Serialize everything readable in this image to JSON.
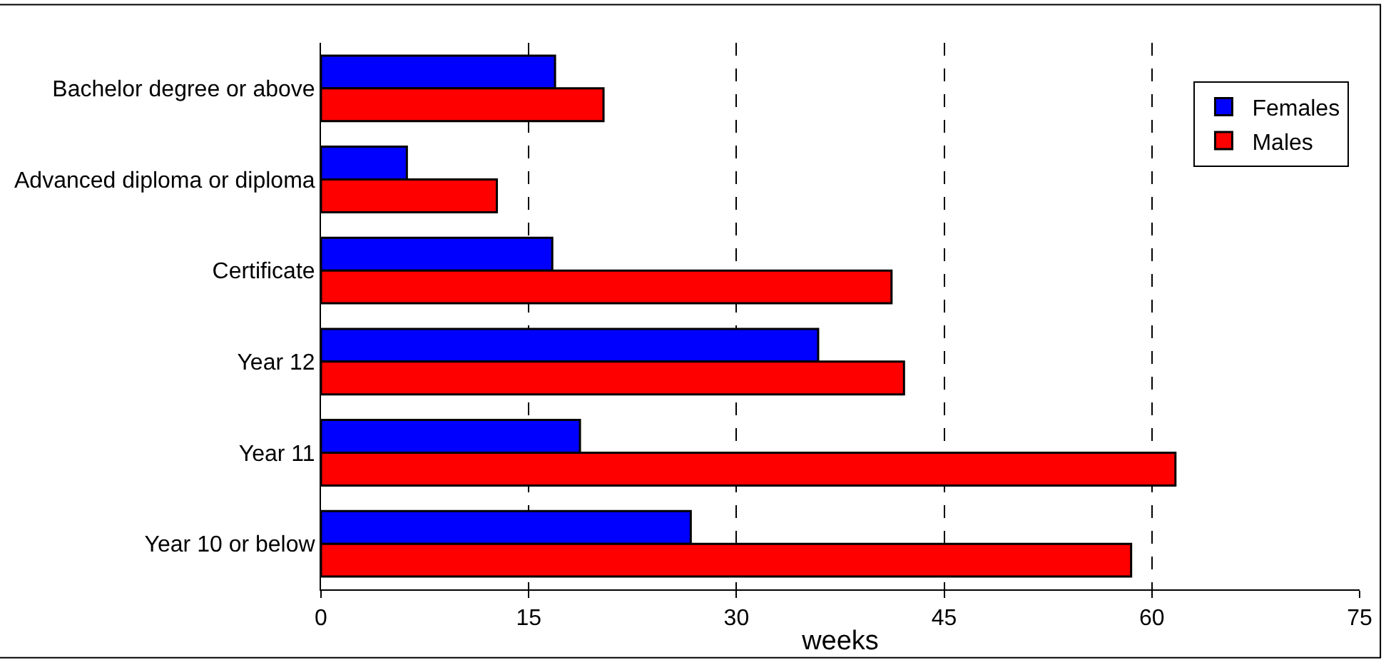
{
  "chart_data": {
    "type": "bar",
    "orientation": "horizontal",
    "xlabel": "weeks",
    "categories": [
      "Bachelor degree or above",
      "Advanced diploma or diploma",
      "Certificate",
      "Year 12",
      "Year 11",
      "Year 10 or below"
    ],
    "series": [
      {
        "name": "Females",
        "color": "#0000ff",
        "values": [
          16.9,
          6.2,
          16.7,
          35.9,
          18.7,
          26.7
        ]
      },
      {
        "name": "Males",
        "color": "#ff0000",
        "values": [
          20.4,
          12.7,
          41.2,
          42.1,
          61.7,
          58.5
        ]
      }
    ],
    "xlim": [
      0,
      75
    ],
    "xticks": [
      0,
      15,
      30,
      45,
      60,
      75
    ],
    "grid": "x",
    "legend": "top right"
  }
}
